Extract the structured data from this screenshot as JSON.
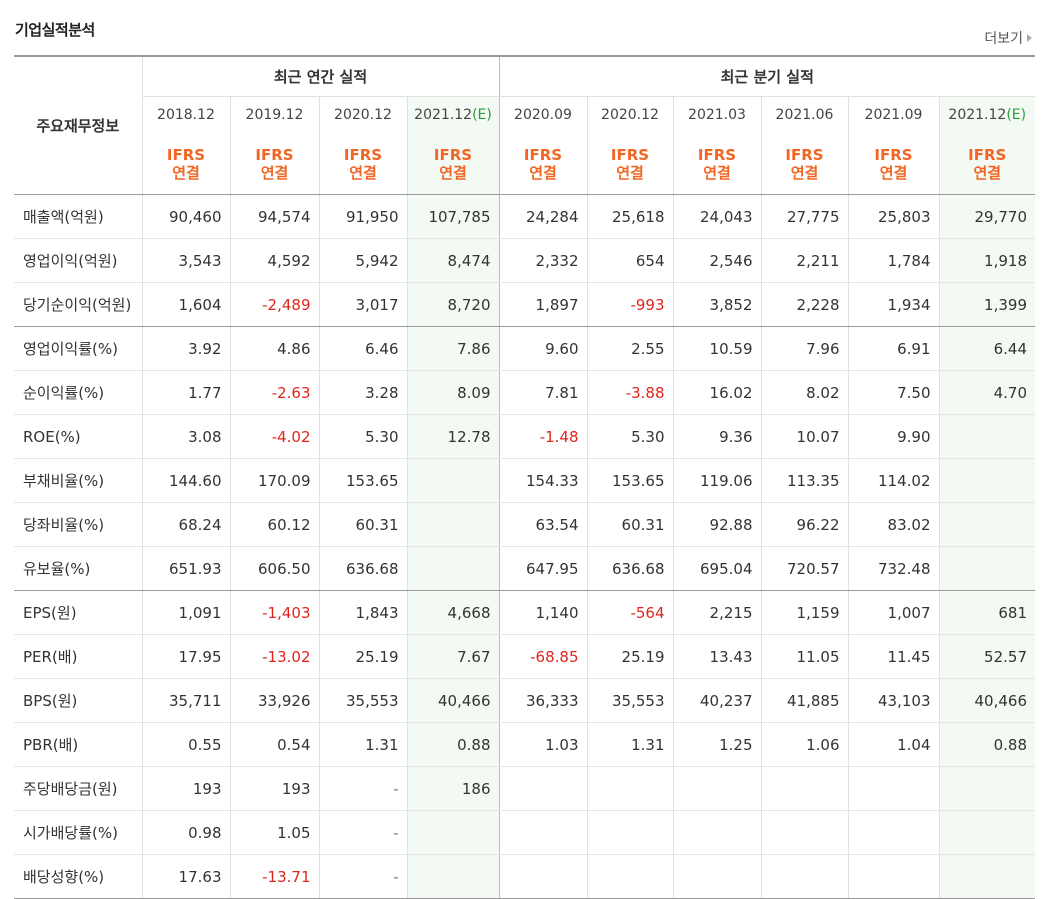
{
  "section": {
    "title": "기업실적분석",
    "more": "더보기"
  },
  "header": {
    "row_label": "주요재무정보",
    "annual_group": "최근 연간 실적",
    "quarter_group": "최근 분기 실적",
    "estimate_tag": "(E)",
    "ifrs_line1": "IFRS",
    "ifrs_line2": "연결",
    "annual_periods": [
      "2018.12",
      "2019.12",
      "2020.12",
      "2021.12"
    ],
    "quarter_periods": [
      "2020.09",
      "2020.12",
      "2021.03",
      "2021.06",
      "2021.09",
      "2021.12"
    ]
  },
  "rows": [
    {
      "label": "매출액(억원)",
      "values": [
        "90,460",
        "94,574",
        "91,950",
        "107,785",
        "24,284",
        "25,618",
        "24,043",
        "27,775",
        "25,803",
        "29,770"
      ]
    },
    {
      "label": "영업이익(억원)",
      "values": [
        "3,543",
        "4,592",
        "5,942",
        "8,474",
        "2,332",
        "654",
        "2,546",
        "2,211",
        "1,784",
        "1,918"
      ]
    },
    {
      "label": "당기순이익(억원)",
      "values": [
        "1,604",
        "-2,489",
        "3,017",
        "8,720",
        "1,897",
        "-993",
        "3,852",
        "2,228",
        "1,934",
        "1,399"
      ]
    },
    {
      "label": "영업이익률(%)",
      "values": [
        "3.92",
        "4.86",
        "6.46",
        "7.86",
        "9.60",
        "2.55",
        "10.59",
        "7.96",
        "6.91",
        "6.44"
      ]
    },
    {
      "label": "순이익률(%)",
      "values": [
        "1.77",
        "-2.63",
        "3.28",
        "8.09",
        "7.81",
        "-3.88",
        "16.02",
        "8.02",
        "7.50",
        "4.70"
      ]
    },
    {
      "label": "ROE(%)",
      "values": [
        "3.08",
        "-4.02",
        "5.30",
        "12.78",
        "-1.48",
        "5.30",
        "9.36",
        "10.07",
        "9.90",
        ""
      ]
    },
    {
      "label": "부채비율(%)",
      "values": [
        "144.60",
        "170.09",
        "153.65",
        "",
        "154.33",
        "153.65",
        "119.06",
        "113.35",
        "114.02",
        ""
      ]
    },
    {
      "label": "당좌비율(%)",
      "values": [
        "68.24",
        "60.12",
        "60.31",
        "",
        "63.54",
        "60.31",
        "92.88",
        "96.22",
        "83.02",
        ""
      ]
    },
    {
      "label": "유보율(%)",
      "values": [
        "651.93",
        "606.50",
        "636.68",
        "",
        "647.95",
        "636.68",
        "695.04",
        "720.57",
        "732.48",
        ""
      ]
    },
    {
      "label": "EPS(원)",
      "values": [
        "1,091",
        "-1,403",
        "1,843",
        "4,668",
        "1,140",
        "-564",
        "2,215",
        "1,159",
        "1,007",
        "681"
      ]
    },
    {
      "label": "PER(배)",
      "values": [
        "17.95",
        "-13.02",
        "25.19",
        "7.67",
        "-68.85",
        "25.19",
        "13.43",
        "11.05",
        "11.45",
        "52.57"
      ]
    },
    {
      "label": "BPS(원)",
      "values": [
        "35,711",
        "33,926",
        "35,553",
        "40,466",
        "36,333",
        "35,553",
        "40,237",
        "41,885",
        "43,103",
        "40,466"
      ]
    },
    {
      "label": "PBR(배)",
      "values": [
        "0.55",
        "0.54",
        "1.31",
        "0.88",
        "1.03",
        "1.31",
        "1.25",
        "1.06",
        "1.04",
        "0.88"
      ]
    },
    {
      "label": "주당배당금(원)",
      "values": [
        "193",
        "193",
        "-",
        "186",
        "",
        "",
        "",
        "",
        "",
        ""
      ]
    },
    {
      "label": "시가배당률(%)",
      "values": [
        "0.98",
        "1.05",
        "-",
        "",
        "",
        "",
        "",
        "",
        "",
        ""
      ]
    },
    {
      "label": "배당성향(%)",
      "values": [
        "17.63",
        "-13.71",
        "-",
        "",
        "",
        "",
        "",
        "",
        "",
        ""
      ]
    }
  ],
  "colors": {
    "negative": "#e0261b",
    "ifrs": "#f26522",
    "estimate_bg": "#f3f9f3",
    "estimate_tag": "#2a9d3a"
  }
}
